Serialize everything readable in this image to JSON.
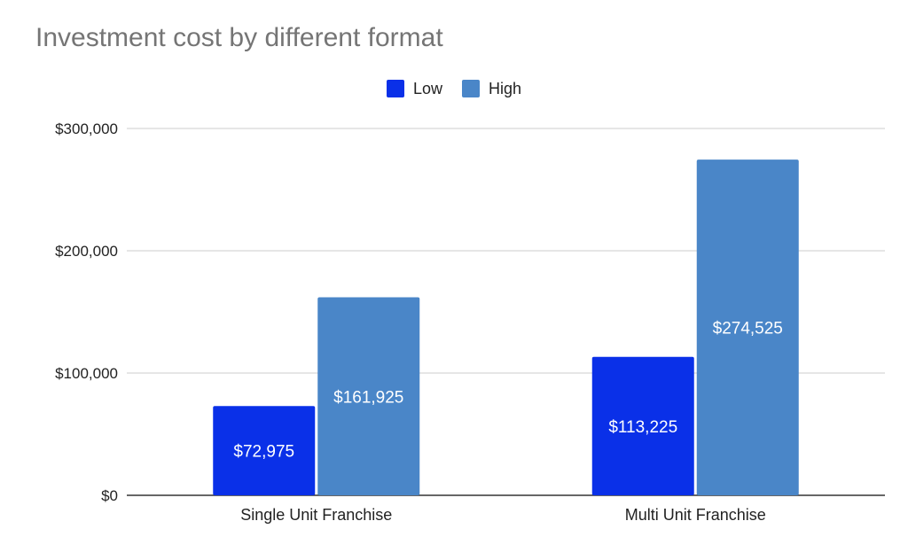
{
  "chart_data": {
    "type": "bar",
    "title": "Investment cost by different format",
    "categories": [
      "Single Unit Franchise",
      "Multi Unit Franchise"
    ],
    "series": [
      {
        "name": "Low",
        "color": "#0a30e8",
        "values": [
          72975,
          113225
        ],
        "labels": [
          "$72,975",
          "$113,225"
        ]
      },
      {
        "name": "High",
        "color": "#4a86c8",
        "values": [
          161925,
          274525
        ],
        "labels": [
          "$161,925",
          "$274,525"
        ]
      }
    ],
    "ylim": [
      0,
      300000
    ],
    "yticks": [
      0,
      100000,
      200000,
      300000
    ],
    "ytick_labels": [
      "$0",
      "$100,000",
      "$200,000",
      "$300,000"
    ],
    "grid": true,
    "legend_position": "top-center",
    "xlabel": "",
    "ylabel": ""
  }
}
